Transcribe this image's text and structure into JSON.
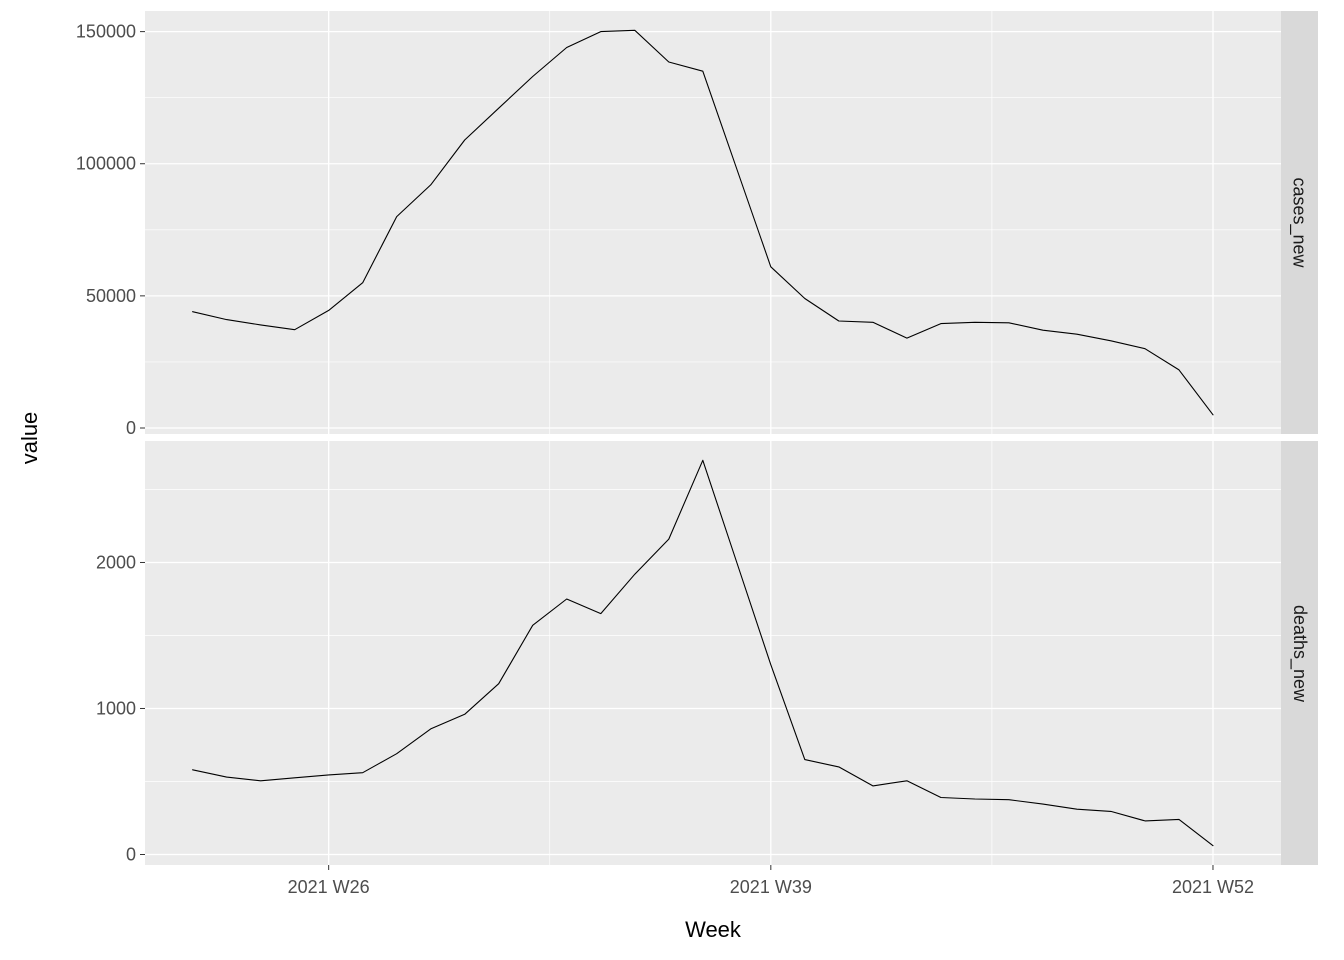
{
  "chart_data": {
    "type": "line",
    "title": "",
    "xlabel": "Week",
    "ylabel": "value",
    "legend": "none",
    "grid": "on",
    "facet_orientation": "rows-right-strips",
    "x_tick_labels": [
      "2021 W26",
      "2021 W39",
      "2021 W52"
    ],
    "x_tick_weeks": [
      26,
      39,
      52
    ],
    "x_minor_weeks": [
      32.5,
      45.5
    ],
    "x_range_weeks": [
      20.6,
      54.0
    ],
    "weeks": [
      22,
      23,
      24,
      25,
      26,
      27,
      28,
      29,
      30,
      31,
      32,
      33,
      34,
      35,
      36,
      37,
      38,
      39,
      40,
      41,
      42,
      43,
      44,
      45,
      46,
      47,
      48,
      49,
      50,
      51,
      52
    ],
    "facets": [
      {
        "label": "cases_new",
        "y_tick_labels": [
          "0",
          "50000",
          "100000",
          "150000"
        ],
        "y_ticks": [
          0,
          50000,
          100000,
          150000
        ],
        "y_minor": [
          25000,
          75000,
          125000
        ],
        "ylim": [
          -2275,
          157800
        ],
        "values": [
          44000,
          41000,
          39000,
          37200,
          44500,
          55000,
          80000,
          92000,
          109000,
          121000,
          133000,
          144000,
          150000,
          150500,
          138500,
          135000,
          98000,
          61000,
          49000,
          40500,
          40000,
          34000,
          39500,
          40000,
          39800,
          37000,
          35500,
          33000,
          30000,
          22000,
          5000
        ]
      },
      {
        "label": "deaths_new",
        "y_tick_labels": [
          "0",
          "1000",
          "2000"
        ],
        "y_ticks": [
          0,
          1000,
          2000
        ],
        "y_minor": [
          500,
          1500,
          2500
        ],
        "ylim": [
          -72,
          2832
        ],
        "values": [
          580,
          530,
          505,
          525,
          545,
          560,
          690,
          860,
          960,
          1170,
          1570,
          1750,
          1650,
          1920,
          2160,
          2700,
          2000,
          1300,
          650,
          600,
          470,
          505,
          390,
          380,
          375,
          345,
          310,
          295,
          230,
          240,
          60
        ]
      }
    ],
    "colors": {
      "panel_bg": "#EBEBEB",
      "strip_bg": "#D9D9D9",
      "grid": "#FFFFFF",
      "line": "#000000",
      "tick_text": "#4D4D4D",
      "tick_mark": "#333333",
      "axis_title": "#000000",
      "strip_text": "#1A1A1A"
    }
  }
}
